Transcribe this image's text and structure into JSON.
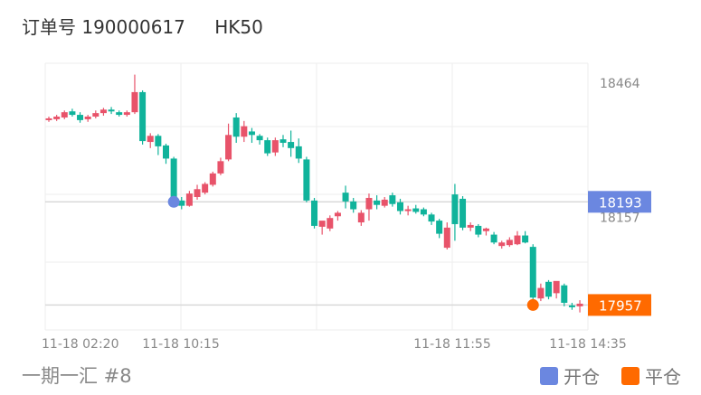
{
  "header": {
    "order_label": "订单号 190000617",
    "symbol": "HK50"
  },
  "footer": {
    "group_label": "一期一汇 #8"
  },
  "legend": [
    {
      "label": "开仓",
      "color": "#6b87e0"
    },
    {
      "label": "平仓",
      "color": "#ff6a00"
    }
  ],
  "chart_data": {
    "type": "candlestick",
    "y_ticks": [
      18464,
      18157
    ],
    "x_ticks": [
      "11-18 02:20",
      "11-18 10:15",
      "11-18 11:55",
      "11-18 14:35"
    ],
    "ylim": [
      17900,
      18510
    ],
    "colors": {
      "up": "#e8536a",
      "down": "#10b39b",
      "grid": "#eeeeee",
      "hline": "#d6d6d6"
    },
    "open_price": 18193,
    "close_price": 17957,
    "open_candle": 16,
    "close_candle": 62,
    "open_marker_color": "#6b87e0",
    "close_marker_color": "#ff6a00",
    "open_price_color": "#6b87e0",
    "close_price_color": "#ff6a00",
    "candles": [
      [
        18380,
        18388,
        18376,
        18384
      ],
      [
        18382,
        18392,
        18378,
        18388
      ],
      [
        18386,
        18402,
        18382,
        18398
      ],
      [
        18400,
        18406,
        18388,
        18392
      ],
      [
        18392,
        18398,
        18374,
        18380
      ],
      [
        18382,
        18392,
        18376,
        18388
      ],
      [
        18388,
        18402,
        18384,
        18396
      ],
      [
        18396,
        18408,
        18390,
        18404
      ],
      [
        18404,
        18410,
        18394,
        18400
      ],
      [
        18398,
        18402,
        18388,
        18392
      ],
      [
        18392,
        18402,
        18388,
        18398
      ],
      [
        18398,
        18484,
        18394,
        18444
      ],
      [
        18444,
        18448,
        18324,
        18332
      ],
      [
        18330,
        18350,
        18316,
        18344
      ],
      [
        18344,
        18348,
        18300,
        18320
      ],
      [
        18322,
        18326,
        18280,
        18292
      ],
      [
        18292,
        18296,
        18188,
        18198
      ],
      [
        18196,
        18204,
        18176,
        18184
      ],
      [
        18184,
        18218,
        18182,
        18212
      ],
      [
        18204,
        18232,
        18198,
        18222
      ],
      [
        18214,
        18238,
        18210,
        18234
      ],
      [
        18232,
        18262,
        18228,
        18258
      ],
      [
        18258,
        18294,
        18254,
        18286
      ],
      [
        18290,
        18372,
        18286,
        18346
      ],
      [
        18386,
        18396,
        18328,
        18342
      ],
      [
        18342,
        18378,
        18330,
        18366
      ],
      [
        18354,
        18362,
        18328,
        18346
      ],
      [
        18344,
        18348,
        18324,
        18334
      ],
      [
        18334,
        18340,
        18298,
        18304
      ],
      [
        18306,
        18340,
        18298,
        18334
      ],
      [
        18336,
        18346,
        18318,
        18328
      ],
      [
        18330,
        18356,
        18296,
        18316
      ],
      [
        18320,
        18338,
        18282,
        18292
      ],
      [
        18290,
        18296,
        18192,
        18196
      ],
      [
        18196,
        18202,
        18132,
        18138
      ],
      [
        18136,
        18146,
        18118,
        18150
      ],
      [
        18132,
        18162,
        18126,
        18156
      ],
      [
        18160,
        18172,
        18150,
        18168
      ],
      [
        18214,
        18230,
        18178,
        18194
      ],
      [
        18194,
        18202,
        18168,
        18176
      ],
      [
        18146,
        18174,
        18138,
        18168
      ],
      [
        18176,
        18212,
        18150,
        18202
      ],
      [
        18196,
        18208,
        18176,
        18186
      ],
      [
        18184,
        18204,
        18180,
        18198
      ],
      [
        18208,
        18214,
        18182,
        18188
      ],
      [
        18192,
        18200,
        18164,
        18172
      ],
      [
        18172,
        18184,
        18162,
        18176
      ],
      [
        18178,
        18186,
        18166,
        18170
      ],
      [
        18176,
        18180,
        18160,
        18164
      ],
      [
        18164,
        18168,
        18140,
        18148
      ],
      [
        18150,
        18154,
        18110,
        18120
      ],
      [
        18088,
        18146,
        18084,
        18134
      ],
      [
        18210,
        18234,
        18104,
        18142
      ],
      [
        18200,
        18206,
        18128,
        18134
      ],
      [
        18134,
        18146,
        18126,
        18140
      ],
      [
        18138,
        18142,
        18112,
        18118
      ],
      [
        18126,
        18134,
        18116,
        18132
      ],
      [
        18118,
        18124,
        18096,
        18100
      ],
      [
        18092,
        18104,
        18086,
        18100
      ],
      [
        18094,
        18112,
        18090,
        18106
      ],
      [
        18096,
        18126,
        18094,
        18116
      ],
      [
        18116,
        18126,
        18098,
        18100
      ],
      [
        18090,
        18096,
        17950,
        17974
      ],
      [
        17972,
        18006,
        17966,
        17996
      ],
      [
        18010,
        18014,
        17970,
        17976
      ],
      [
        17984,
        18006,
        17972,
        18012
      ],
      [
        18002,
        18006,
        17954,
        17962
      ],
      [
        17956,
        17962,
        17946,
        17954
      ],
      [
        17954,
        17968,
        17940,
        17960
      ]
    ]
  }
}
